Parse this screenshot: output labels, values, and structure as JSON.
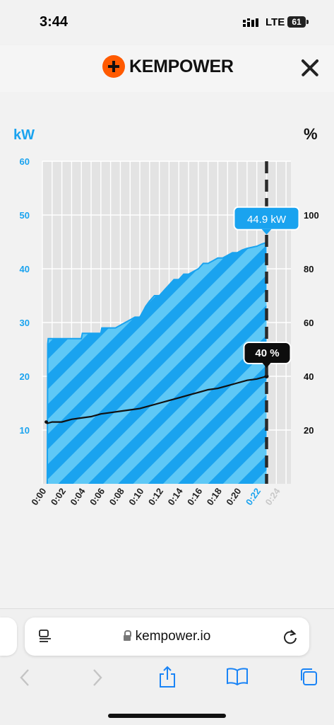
{
  "status_bar": {
    "time": "3:44",
    "network": "LTE",
    "battery": "61"
  },
  "header": {
    "brand": "KEMPOWER"
  },
  "chart_data": {
    "type": "area",
    "left_unit": "kW",
    "right_unit": "%",
    "x_ticks": [
      "0:00",
      "0:02",
      "0:04",
      "0:06",
      "0:08",
      "0:10",
      "0:12",
      "0:14",
      "0:16",
      "0:18",
      "0:20",
      "0:22",
      "0:24"
    ],
    "current_tick": "0:22",
    "future_tick": "0:24",
    "y_left_ticks": [
      10,
      20,
      30,
      40,
      50,
      60
    ],
    "y_right_ticks": [
      20,
      40,
      60,
      80,
      100
    ],
    "ylim_left": [
      0,
      60
    ],
    "ylim_right": [
      0,
      120
    ],
    "xlim_minutes": [
      0,
      25.5
    ],
    "current_minute": 23,
    "grid": true,
    "series": [
      {
        "name": "kW",
        "axis": "left",
        "color": "#4cc3f5",
        "x": [
          0.5,
          0.55,
          0.6,
          1,
          2,
          3,
          4,
          4.1,
          5,
          6,
          6.1,
          7,
          7.5,
          8.5,
          9,
          9.5,
          9.8,
          10,
          10.3,
          10.6,
          11,
          11.5,
          12,
          12.5,
          13,
          13.5,
          14,
          14.5,
          15,
          15.5,
          16,
          16.5,
          17,
          17.5,
          18,
          18.5,
          19,
          19.5,
          20,
          20.5,
          21,
          21.5,
          22,
          22.5,
          23,
          23.01
        ],
        "values": [
          0,
          26,
          27,
          27,
          27,
          27,
          27,
          28,
          28,
          28,
          29,
          29,
          29,
          30,
          30.5,
          31,
          31,
          31,
          32,
          33,
          34,
          35,
          35,
          36,
          37,
          38,
          38,
          39,
          39,
          39.5,
          40,
          41,
          41,
          41.5,
          42,
          42,
          42.5,
          43,
          43,
          43.5,
          43.8,
          44,
          44.2,
          44.6,
          44.9,
          0
        ]
      },
      {
        "name": "%",
        "axis": "right",
        "color": "#111111",
        "x": [
          0.4,
          0.5,
          1,
          2,
          3,
          4,
          5,
          6,
          7,
          8,
          9,
          10,
          11,
          12,
          13,
          14,
          15,
          16,
          17,
          18,
          19,
          20,
          21,
          22,
          23
        ],
        "values": [
          23,
          22.5,
          23,
          23,
          24,
          24.5,
          25,
          26,
          26.5,
          27,
          27.5,
          28,
          29,
          30,
          31,
          32,
          33,
          34,
          35,
          35.5,
          36.5,
          37.5,
          38.5,
          39,
          40
        ]
      }
    ],
    "tooltips": {
      "power_label": "44.9 kW",
      "soc_label": "40 %"
    }
  },
  "browser": {
    "url": "kempower.io"
  }
}
